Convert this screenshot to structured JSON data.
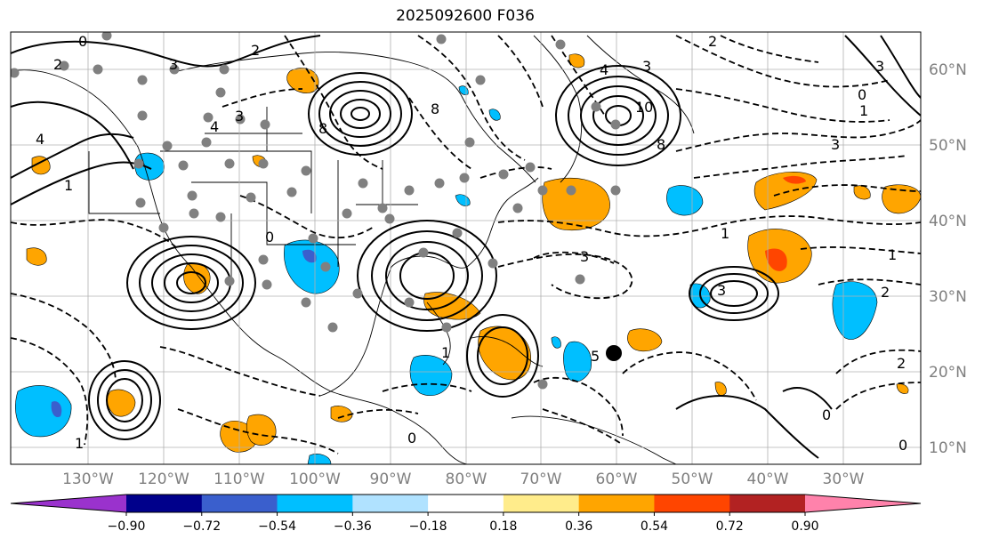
{
  "title": "2025092600 F036",
  "latitude_labels": [
    "60°N",
    "50°N",
    "40°N",
    "30°N",
    "20°N",
    "10°N"
  ],
  "longitude_labels": [
    "130°W",
    "120°W",
    "110°W",
    "100°W",
    "90°W",
    "80°W",
    "70°W",
    "60°W",
    "50°W",
    "40°W",
    "30°W"
  ],
  "colorbar": {
    "tick_labels": [
      "−0.90",
      "−0.72",
      "−0.54",
      "−0.36",
      "−0.18",
      "0.18",
      "0.36",
      "0.54",
      "0.72",
      "0.90"
    ],
    "colors": [
      "#9a32cd",
      "#00008b",
      "#3a5fcd",
      "#00bfff",
      "#b0e2ff",
      "#ffffff",
      "#ffec8b",
      "#ffa500",
      "#ff4500",
      "#b22222",
      "#ff82ab"
    ]
  },
  "contour_labels": [
    "0",
    "2",
    "3",
    "4",
    "1",
    "2",
    "3",
    "4",
    "8",
    "0",
    "4",
    "3",
    "10",
    "8",
    "3",
    "1",
    "3",
    "0",
    "2",
    "3",
    "1",
    "2",
    "3",
    "1",
    "8",
    "5",
    "1",
    "2",
    "0",
    "0",
    "0",
    "1"
  ]
}
